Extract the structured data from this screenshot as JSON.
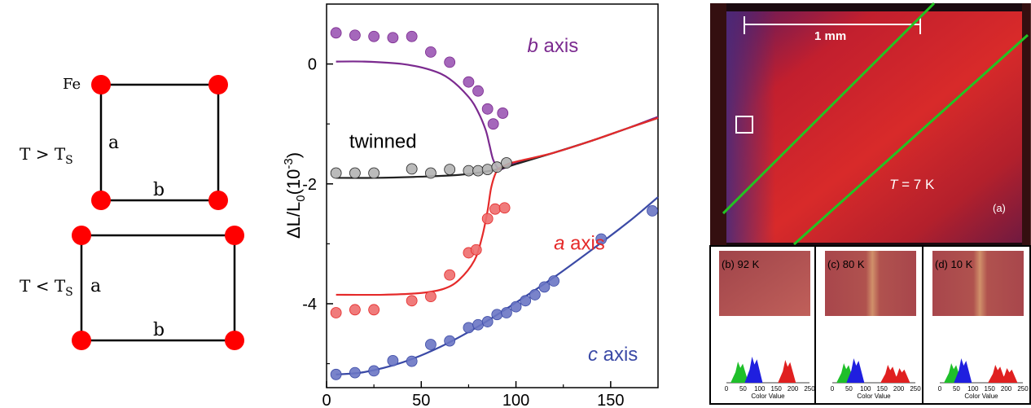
{
  "lattice": {
    "atom_label": "Fe",
    "upper": {
      "condition": "T > T",
      "condition_sub": "S",
      "side_a": "a",
      "side_b": "b"
    },
    "lower": {
      "condition": "T < T",
      "condition_sub": "S",
      "side_a": "a",
      "side_b": "b"
    },
    "atom_color": "#ff0000"
  },
  "chart_data": {
    "type": "scatter",
    "ylabel_main": "ΔL/L",
    "ylabel_sub": "0",
    "ylabel_unit": "(10",
    "ylabel_exp": "-3",
    "ylabel_close": ")",
    "xlim": [
      0,
      175
    ],
    "ylim": [
      -5.4,
      1.0
    ],
    "xticks": [
      "0",
      "50",
      "100",
      "150"
    ],
    "xtick_values": [
      0,
      50,
      100,
      150
    ],
    "yticks": [
      "0",
      "-2",
      "-4"
    ],
    "ytick_values": [
      0,
      -2,
      -4
    ],
    "series": [
      {
        "name": "b axis",
        "name_italic": "b",
        "name_rest": " axis",
        "color": "#7b2a8f",
        "marker": "#9b57b4",
        "points": [
          [
            5,
            0.52
          ],
          [
            15,
            0.48
          ],
          [
            25,
            0.46
          ],
          [
            35,
            0.44
          ],
          [
            45,
            0.46
          ],
          [
            55,
            0.2
          ],
          [
            65,
            0.03
          ],
          [
            75,
            -0.3
          ],
          [
            80,
            -0.45
          ],
          [
            85,
            -0.75
          ],
          [
            88,
            -1.0
          ],
          [
            93,
            -0.82
          ]
        ],
        "fit": [
          [
            5,
            0.04
          ],
          [
            20,
            0.04
          ],
          [
            40,
            0.0
          ],
          [
            55,
            -0.1
          ],
          [
            65,
            -0.25
          ],
          [
            75,
            -0.55
          ],
          [
            80,
            -0.8
          ],
          [
            84,
            -1.1
          ],
          [
            86,
            -1.35
          ],
          [
            88,
            -1.6
          ],
          [
            91,
            -1.75
          ],
          [
            95,
            -1.72
          ],
          [
            100,
            -1.65
          ],
          [
            120,
            -1.48
          ],
          [
            140,
            -1.28
          ],
          [
            160,
            -1.06
          ],
          [
            175,
            -0.88
          ]
        ]
      },
      {
        "name": "twinned",
        "name_italic": "",
        "name_rest": "twinned",
        "color": "#222222",
        "marker": "#b3b3b3",
        "points": [
          [
            5,
            -1.82
          ],
          [
            15,
            -1.82
          ],
          [
            25,
            -1.82
          ],
          [
            45,
            -1.75
          ],
          [
            55,
            -1.82
          ],
          [
            65,
            -1.76
          ],
          [
            75,
            -1.78
          ],
          [
            80,
            -1.78
          ],
          [
            85,
            -1.76
          ],
          [
            90,
            -1.72
          ],
          [
            95,
            -1.65
          ]
        ],
        "fit": [
          [
            5,
            -1.9
          ],
          [
            25,
            -1.9
          ],
          [
            50,
            -1.88
          ],
          [
            70,
            -1.85
          ],
          [
            85,
            -1.79
          ],
          [
            95,
            -1.72
          ],
          [
            100,
            -1.67
          ],
          [
            120,
            -1.48
          ],
          [
            140,
            -1.28
          ],
          [
            160,
            -1.06
          ],
          [
            175,
            -0.9
          ]
        ]
      },
      {
        "name": "a axis",
        "name_italic": "a",
        "name_rest": " axis",
        "color": "#e52a2a",
        "marker": "#ee6d6d",
        "points": [
          [
            5,
            -4.15
          ],
          [
            15,
            -4.1
          ],
          [
            25,
            -4.1
          ],
          [
            45,
            -3.95
          ],
          [
            55,
            -3.88
          ],
          [
            65,
            -3.52
          ],
          [
            75,
            -3.15
          ],
          [
            79,
            -3.1
          ],
          [
            85,
            -2.58
          ],
          [
            89,
            -2.42
          ],
          [
            94,
            -2.4
          ]
        ],
        "fit": [
          [
            5,
            -3.85
          ],
          [
            30,
            -3.85
          ],
          [
            50,
            -3.82
          ],
          [
            62,
            -3.75
          ],
          [
            70,
            -3.6
          ],
          [
            78,
            -3.28
          ],
          [
            82,
            -2.9
          ],
          [
            85,
            -2.45
          ],
          [
            87,
            -2.05
          ],
          [
            90,
            -1.78
          ],
          [
            95,
            -1.68
          ],
          [
            100,
            -1.63
          ],
          [
            120,
            -1.48
          ],
          [
            140,
            -1.28
          ],
          [
            160,
            -1.06
          ],
          [
            175,
            -0.9
          ]
        ]
      },
      {
        "name": "c axis",
        "name_italic": "c",
        "name_rest": " axis",
        "color": "#3b4aa6",
        "marker": "#6a76c4",
        "points": [
          [
            5,
            -5.18
          ],
          [
            15,
            -5.15
          ],
          [
            25,
            -5.12
          ],
          [
            35,
            -4.95
          ],
          [
            45,
            -4.96
          ],
          [
            55,
            -4.68
          ],
          [
            65,
            -4.62
          ],
          [
            75,
            -4.4
          ],
          [
            80,
            -4.35
          ],
          [
            85,
            -4.3
          ],
          [
            90,
            -4.18
          ],
          [
            95,
            -4.15
          ],
          [
            100,
            -4.05
          ],
          [
            105,
            -3.95
          ],
          [
            110,
            -3.85
          ],
          [
            115,
            -3.72
          ],
          [
            120,
            -3.62
          ],
          [
            145,
            -2.92
          ],
          [
            172,
            -2.45
          ]
        ],
        "fit": [
          [
            5,
            -5.18
          ],
          [
            20,
            -5.14
          ],
          [
            40,
            -4.98
          ],
          [
            60,
            -4.72
          ],
          [
            80,
            -4.38
          ],
          [
            100,
            -3.98
          ],
          [
            120,
            -3.56
          ],
          [
            140,
            -3.1
          ],
          [
            160,
            -2.62
          ],
          [
            175,
            -2.22
          ]
        ]
      }
    ],
    "label_positions_note": "series name labels placed near their curves"
  },
  "photo": {
    "scale_label": "1 mm",
    "temperature_label_italic": "T",
    "temperature_label_rest": " = 7 K",
    "panel_label": "(a)",
    "insets": [
      {
        "label": "(b) 92 K"
      },
      {
        "label": "(c) 80 K"
      },
      {
        "label": "(d) 10 K"
      }
    ],
    "histogram_xticks": [
      "0",
      "50",
      "100",
      "150",
      "200",
      "250"
    ],
    "histogram_xlabel": "Color Value",
    "line_color": "#22c422"
  }
}
